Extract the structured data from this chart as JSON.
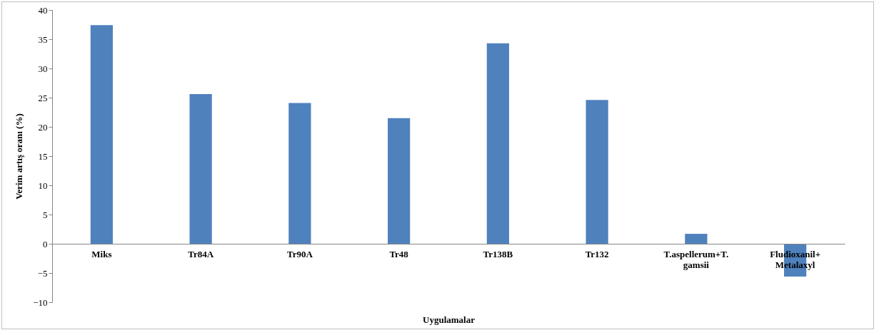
{
  "chart_data": {
    "type": "bar",
    "xlabel": "Uygulamalar",
    "ylabel": "Verim artış oranı (%)",
    "categories": [
      "Miks",
      "Tr84A",
      "Tr90A",
      "Tr48",
      "Tr138B",
      "Tr132",
      "T.aspellerum+T. gamsii",
      "Fludioxanil+ Metalaxyl"
    ],
    "values": [
      37.4,
      25.6,
      24.1,
      21.5,
      34.3,
      24.6,
      1.7,
      -5.6
    ],
    "color": "#4f81bd",
    "ylim": [
      -10,
      40
    ],
    "yticks": [
      -10,
      -5,
      0,
      5,
      10,
      15,
      20,
      25,
      30,
      35,
      40
    ],
    "grid": false
  }
}
